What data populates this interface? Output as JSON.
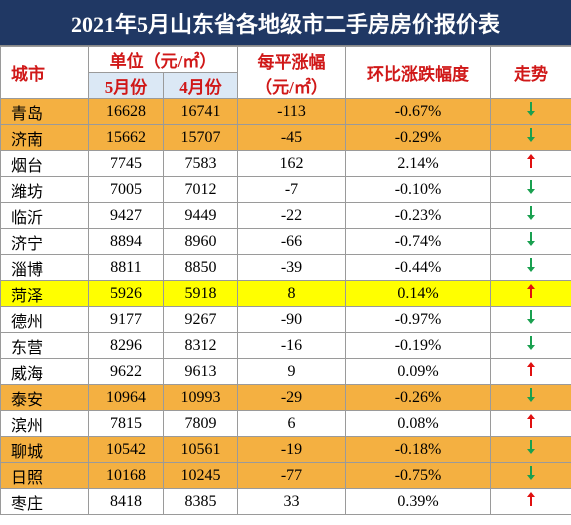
{
  "title": "2021年5月山东省各地级市二手房房价报价表",
  "header": {
    "city": "城市",
    "unit": "单位（元/㎡）",
    "may": "5月份",
    "april": "4月份",
    "change_line1": "每平涨幅",
    "change_line2": "（元/㎡）",
    "ratio": "环比涨跌幅度",
    "trend": "走势"
  },
  "table": {
    "rows": [
      [
        "青岛",
        "16628",
        "16741",
        "-113",
        "-0.67%"
      ],
      [
        "济南",
        "15662",
        "15707",
        "-45",
        "-0.29%"
      ],
      [
        "烟台",
        "7745",
        "7583",
        "162",
        "2.14%"
      ],
      [
        "潍坊",
        "7005",
        "7012",
        "-7",
        "-0.10%"
      ],
      [
        "临沂",
        "9427",
        "9449",
        "-22",
        "-0.23%"
      ],
      [
        "济宁",
        "8894",
        "8960",
        "-66",
        "-0.74%"
      ],
      [
        "淄博",
        "8811",
        "8850",
        "-39",
        "-0.44%"
      ],
      [
        "菏泽",
        "5926",
        "5918",
        "8",
        "0.14%"
      ],
      [
        "德州",
        "9177",
        "9267",
        "-90",
        "-0.97%"
      ],
      [
        "东营",
        "8296",
        "8312",
        "-16",
        "-0.19%"
      ],
      [
        "威海",
        "9622",
        "9613",
        "9",
        "0.09%"
      ],
      [
        "泰安",
        "10964",
        "10993",
        "-29",
        "-0.26%"
      ],
      [
        "滨州",
        "7815",
        "7809",
        "6",
        "0.08%"
      ],
      [
        "聊城",
        "10542",
        "10561",
        "-19",
        "-0.18%"
      ],
      [
        "日照",
        "10168",
        "10245",
        "-77",
        "-0.75%"
      ],
      [
        "枣庄",
        "8418",
        "8385",
        "33",
        "0.39%"
      ]
    ]
  }
}
